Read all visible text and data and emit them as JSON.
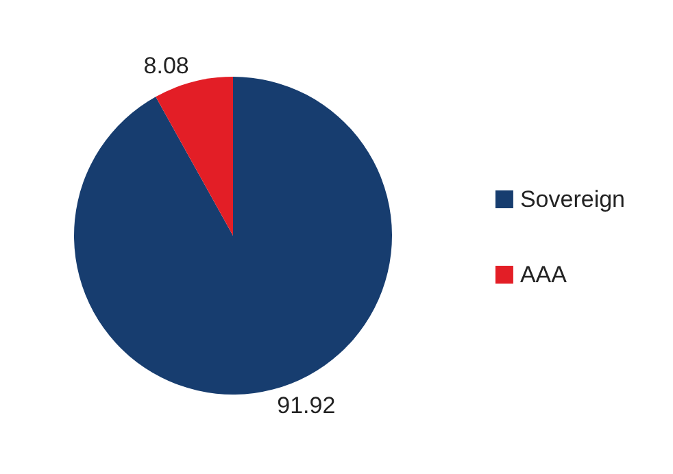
{
  "chart_data": {
    "type": "pie",
    "categories": [
      "Sovereign",
      "AAA"
    ],
    "values": [
      91.92,
      8.08
    ],
    "colors": [
      "#173d6f",
      "#e31e26"
    ],
    "data_labels": true,
    "legend": "right"
  }
}
